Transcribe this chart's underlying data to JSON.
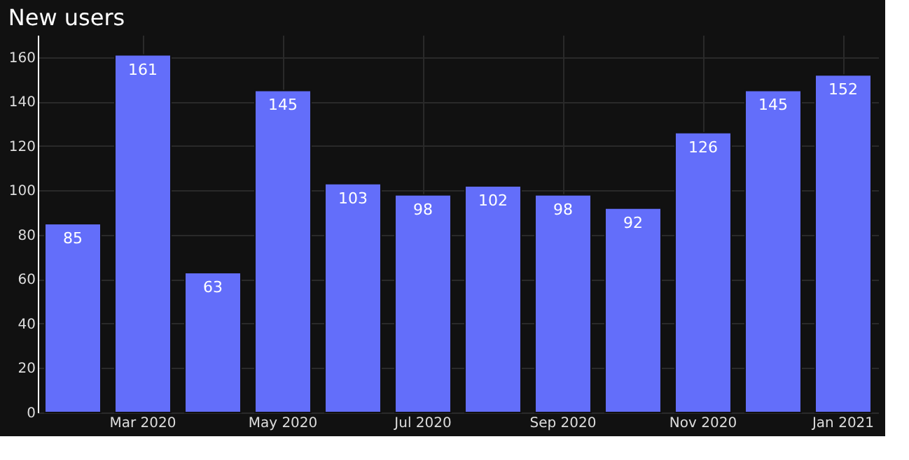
{
  "chart_data": {
    "type": "bar",
    "title": "New users",
    "categories": [
      null,
      "Mar 2020",
      null,
      "May 2020",
      null,
      "Jul 2020",
      null,
      "Sep 2020",
      null,
      "Nov 2020",
      null,
      "Jan 2021"
    ],
    "values": [
      85,
      161,
      63,
      145,
      103,
      98,
      102,
      98,
      92,
      126,
      145,
      152
    ],
    "color": "#636efa",
    "ylim": [
      0,
      170
    ],
    "yticks": [
      0,
      20,
      40,
      60,
      80,
      100,
      120,
      140,
      160
    ],
    "grid": true,
    "data_labels": true
  }
}
